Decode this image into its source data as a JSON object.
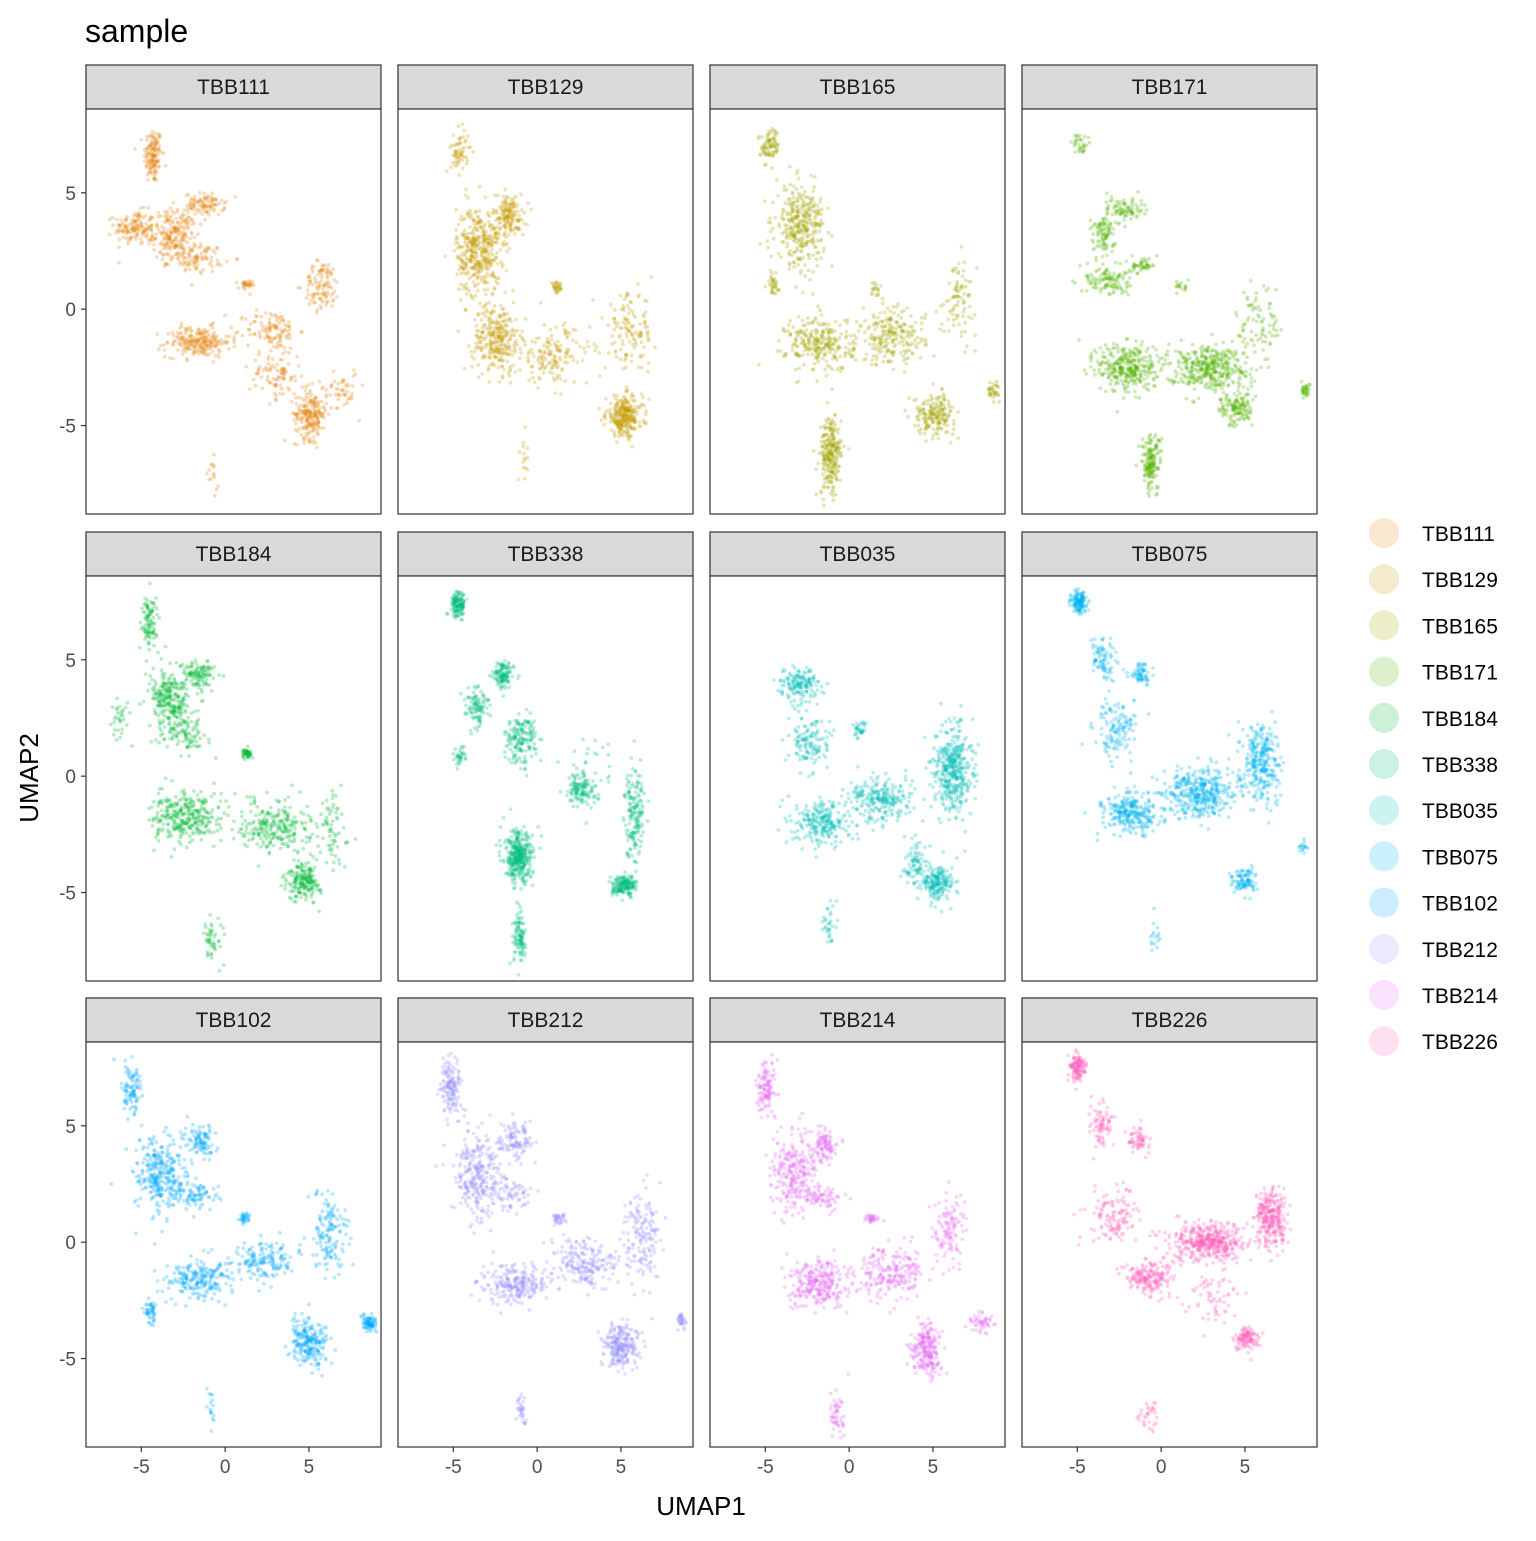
{
  "chart_data": {
    "type": "scatter",
    "title": "sample",
    "xlabel": "UMAP1",
    "ylabel": "UMAP2",
    "xlim": [
      -8.3,
      9.3
    ],
    "ylim": [
      -8.8,
      8.6
    ],
    "xticks": [
      -5,
      0,
      5
    ],
    "xtick_labels": [
      "-5",
      "0",
      "5"
    ],
    "yticks": [
      -5,
      0,
      5
    ],
    "ytick_labels": [
      "-5",
      "0",
      "5"
    ],
    "facet_layout": "3 rows x 4 columns",
    "legend_position": "right",
    "marker_opacity": "low (semi-transparent points)",
    "series": [
      {
        "name": "TBB111",
        "color": "#E68613",
        "clusters": [
          {
            "x": -4.3,
            "y": 6.6,
            "sx": 0.45,
            "sy": 1.0,
            "w": 0.09
          },
          {
            "x": -5.4,
            "y": 3.5,
            "sx": 1.0,
            "sy": 0.6,
            "w": 0.09
          },
          {
            "x": -3.0,
            "y": 3.2,
            "sx": 1.1,
            "sy": 0.9,
            "w": 0.14
          },
          {
            "x": -1.2,
            "y": 4.5,
            "sx": 1.0,
            "sy": 0.4,
            "w": 0.06
          },
          {
            "x": -1.6,
            "y": 2.2,
            "sx": 1.3,
            "sy": 0.5,
            "w": 0.06
          },
          {
            "x": 1.2,
            "y": 1.0,
            "sx": 0.35,
            "sy": 0.2,
            "w": 0.02
          },
          {
            "x": -1.6,
            "y": -1.4,
            "sx": 1.6,
            "sy": 0.55,
            "w": 0.15
          },
          {
            "x": 2.8,
            "y": -0.9,
            "sx": 1.3,
            "sy": 0.7,
            "w": 0.07
          },
          {
            "x": 5.8,
            "y": 1.0,
            "sx": 0.9,
            "sy": 0.9,
            "w": 0.07
          },
          {
            "x": 5.1,
            "y": -4.5,
            "sx": 0.8,
            "sy": 0.9,
            "w": 0.14
          },
          {
            "x": 3.0,
            "y": -2.8,
            "sx": 1.3,
            "sy": 0.9,
            "w": 0.06
          },
          {
            "x": 7.0,
            "y": -3.4,
            "sx": 0.8,
            "sy": 0.8,
            "w": 0.03
          },
          {
            "x": -0.8,
            "y": -7.2,
            "sx": 0.35,
            "sy": 0.6,
            "w": 0.01
          }
        ]
      },
      {
        "name": "TBB129",
        "color": "#C49A00",
        "clusters": [
          {
            "x": -4.6,
            "y": 6.8,
            "sx": 0.45,
            "sy": 0.8,
            "w": 0.04
          },
          {
            "x": -3.5,
            "y": 2.5,
            "sx": 1.1,
            "sy": 1.6,
            "w": 0.26
          },
          {
            "x": -1.7,
            "y": 4.0,
            "sx": 0.8,
            "sy": 0.8,
            "w": 0.1
          },
          {
            "x": -2.4,
            "y": -1.3,
            "sx": 1.2,
            "sy": 1.2,
            "w": 0.18
          },
          {
            "x": 1.0,
            "y": -2.0,
            "sx": 1.8,
            "sy": 1.1,
            "w": 0.1
          },
          {
            "x": 5.2,
            "y": -4.6,
            "sx": 0.9,
            "sy": 0.7,
            "w": 0.18
          },
          {
            "x": 5.5,
            "y": -1.0,
            "sx": 1.2,
            "sy": 1.4,
            "w": 0.08
          },
          {
            "x": 1.2,
            "y": 0.9,
            "sx": 0.3,
            "sy": 0.2,
            "w": 0.02
          },
          {
            "x": -0.8,
            "y": -6.5,
            "sx": 0.4,
            "sy": 0.8,
            "w": 0.01
          }
        ]
      },
      {
        "name": "TBB165",
        "color": "#A3A500",
        "clusters": [
          {
            "x": -4.7,
            "y": 7.0,
            "sx": 0.45,
            "sy": 0.6,
            "w": 0.05
          },
          {
            "x": -2.9,
            "y": 3.6,
            "sx": 1.2,
            "sy": 1.4,
            "w": 0.2
          },
          {
            "x": -4.6,
            "y": 1.1,
            "sx": 0.35,
            "sy": 0.4,
            "w": 0.02
          },
          {
            "x": -1.7,
            "y": -1.5,
            "sx": 1.7,
            "sy": 1.0,
            "w": 0.16
          },
          {
            "x": 2.6,
            "y": -1.2,
            "sx": 1.6,
            "sy": 1.0,
            "w": 0.13
          },
          {
            "x": -1.1,
            "y": -6.3,
            "sx": 0.55,
            "sy": 1.4,
            "w": 0.15
          },
          {
            "x": 5.1,
            "y": -4.5,
            "sx": 1.0,
            "sy": 0.7,
            "w": 0.11
          },
          {
            "x": 6.6,
            "y": 0.5,
            "sx": 0.8,
            "sy": 1.4,
            "w": 0.05
          },
          {
            "x": 8.6,
            "y": -3.5,
            "sx": 0.3,
            "sy": 0.3,
            "w": 0.02
          },
          {
            "x": 1.6,
            "y": 0.8,
            "sx": 0.4,
            "sy": 0.3,
            "w": 0.01
          }
        ]
      },
      {
        "name": "TBB171",
        "color": "#53B400",
        "clusters": [
          {
            "x": -4.8,
            "y": 7.1,
            "sx": 0.35,
            "sy": 0.4,
            "w": 0.02
          },
          {
            "x": -3.5,
            "y": 3.2,
            "sx": 0.6,
            "sy": 0.9,
            "w": 0.06
          },
          {
            "x": -2.1,
            "y": 4.3,
            "sx": 0.9,
            "sy": 0.45,
            "w": 0.05
          },
          {
            "x": -3.2,
            "y": 1.2,
            "sx": 1.1,
            "sy": 0.55,
            "w": 0.07
          },
          {
            "x": -1.1,
            "y": 1.9,
            "sx": 0.7,
            "sy": 0.3,
            "w": 0.03
          },
          {
            "x": -2.0,
            "y": -2.5,
            "sx": 1.5,
            "sy": 0.9,
            "w": 0.2
          },
          {
            "x": 2.8,
            "y": -2.5,
            "sx": 2.0,
            "sy": 0.8,
            "w": 0.24
          },
          {
            "x": -0.6,
            "y": -6.6,
            "sx": 0.5,
            "sy": 1.0,
            "w": 0.1
          },
          {
            "x": 4.5,
            "y": -4.3,
            "sx": 0.8,
            "sy": 0.6,
            "w": 0.08
          },
          {
            "x": 8.6,
            "y": -3.5,
            "sx": 0.25,
            "sy": 0.25,
            "w": 0.02
          },
          {
            "x": 6.0,
            "y": -0.5,
            "sx": 1.2,
            "sy": 1.5,
            "w": 0.05
          },
          {
            "x": 1.2,
            "y": 1.0,
            "sx": 0.3,
            "sy": 0.2,
            "w": 0.01
          }
        ]
      },
      {
        "name": "TBB184",
        "color": "#00B936",
        "clusters": [
          {
            "x": -4.5,
            "y": 6.6,
            "sx": 0.45,
            "sy": 1.0,
            "w": 0.06
          },
          {
            "x": -3.3,
            "y": 3.3,
            "sx": 1.0,
            "sy": 1.0,
            "w": 0.16
          },
          {
            "x": -1.6,
            "y": 4.4,
            "sx": 0.8,
            "sy": 0.5,
            "w": 0.07
          },
          {
            "x": -2.5,
            "y": 1.8,
            "sx": 1.2,
            "sy": 0.6,
            "w": 0.06
          },
          {
            "x": -2.3,
            "y": -1.8,
            "sx": 1.7,
            "sy": 0.9,
            "w": 0.2
          },
          {
            "x": 3.0,
            "y": -2.1,
            "sx": 1.8,
            "sy": 0.9,
            "w": 0.16
          },
          {
            "x": 4.7,
            "y": -4.5,
            "sx": 0.8,
            "sy": 0.7,
            "w": 0.12
          },
          {
            "x": 1.3,
            "y": 1.0,
            "sx": 0.35,
            "sy": 0.2,
            "w": 0.03
          },
          {
            "x": -0.7,
            "y": -7.0,
            "sx": 0.5,
            "sy": 0.8,
            "w": 0.03
          },
          {
            "x": -6.3,
            "y": 2.5,
            "sx": 0.5,
            "sy": 0.8,
            "w": 0.02
          },
          {
            "x": 6.5,
            "y": -2.5,
            "sx": 0.8,
            "sy": 1.5,
            "w": 0.04
          }
        ]
      },
      {
        "name": "TBB338",
        "color": "#00BF7D",
        "clusters": [
          {
            "x": -4.7,
            "y": 7.4,
            "sx": 0.35,
            "sy": 0.45,
            "w": 0.08
          },
          {
            "x": -2.0,
            "y": 4.3,
            "sx": 0.5,
            "sy": 0.5,
            "w": 0.07
          },
          {
            "x": -3.6,
            "y": 3.0,
            "sx": 0.6,
            "sy": 0.8,
            "w": 0.06
          },
          {
            "x": -1.0,
            "y": 1.6,
            "sx": 0.8,
            "sy": 0.9,
            "w": 0.1
          },
          {
            "x": -1.1,
            "y": -3.5,
            "sx": 0.7,
            "sy": 0.9,
            "w": 0.22
          },
          {
            "x": -1.0,
            "y": -7.0,
            "sx": 0.35,
            "sy": 0.9,
            "w": 0.06
          },
          {
            "x": 5.2,
            "y": -4.7,
            "sx": 0.6,
            "sy": 0.35,
            "w": 0.1
          },
          {
            "x": 5.8,
            "y": -1.5,
            "sx": 0.5,
            "sy": 1.6,
            "w": 0.1
          },
          {
            "x": 2.6,
            "y": -0.6,
            "sx": 0.6,
            "sy": 0.6,
            "w": 0.06
          },
          {
            "x": -4.6,
            "y": 0.8,
            "sx": 0.3,
            "sy": 0.4,
            "w": 0.02
          },
          {
            "x": 3.2,
            "y": 0.0,
            "sx": 1.5,
            "sy": 1.2,
            "w": 0.03
          }
        ]
      },
      {
        "name": "TBB035",
        "color": "#00C0B8",
        "clusters": [
          {
            "x": -3.0,
            "y": 3.9,
            "sx": 1.0,
            "sy": 0.6,
            "w": 0.1
          },
          {
            "x": -2.3,
            "y": 1.5,
            "sx": 1.0,
            "sy": 1.0,
            "w": 0.08
          },
          {
            "x": -1.6,
            "y": -2.0,
            "sx": 1.4,
            "sy": 0.8,
            "w": 0.15
          },
          {
            "x": 2.0,
            "y": -1.0,
            "sx": 1.6,
            "sy": 0.8,
            "w": 0.15
          },
          {
            "x": 6.2,
            "y": 0.3,
            "sx": 0.9,
            "sy": 1.6,
            "w": 0.26
          },
          {
            "x": 5.3,
            "y": -4.6,
            "sx": 0.8,
            "sy": 0.6,
            "w": 0.12
          },
          {
            "x": 4.0,
            "y": -3.8,
            "sx": 0.6,
            "sy": 0.7,
            "w": 0.05
          },
          {
            "x": -1.2,
            "y": -6.5,
            "sx": 0.3,
            "sy": 0.8,
            "w": 0.02
          },
          {
            "x": 0.6,
            "y": 2.0,
            "sx": 0.3,
            "sy": 0.3,
            "w": 0.02
          }
        ]
      },
      {
        "name": "TBB075",
        "color": "#00B4EF",
        "clusters": [
          {
            "x": -4.9,
            "y": 7.5,
            "sx": 0.4,
            "sy": 0.45,
            "w": 0.08
          },
          {
            "x": -3.5,
            "y": 5.0,
            "sx": 0.6,
            "sy": 0.7,
            "w": 0.05
          },
          {
            "x": -1.2,
            "y": 4.4,
            "sx": 0.6,
            "sy": 0.4,
            "w": 0.04
          },
          {
            "x": -2.6,
            "y": 2.0,
            "sx": 1.1,
            "sy": 1.0,
            "w": 0.08
          },
          {
            "x": -1.8,
            "y": -1.6,
            "sx": 1.3,
            "sy": 0.7,
            "w": 0.17
          },
          {
            "x": 2.3,
            "y": -0.7,
            "sx": 1.8,
            "sy": 0.9,
            "w": 0.25
          },
          {
            "x": 6.0,
            "y": 0.6,
            "sx": 0.9,
            "sy": 1.4,
            "w": 0.18
          },
          {
            "x": 5.0,
            "y": -4.5,
            "sx": 0.6,
            "sy": 0.5,
            "w": 0.06
          },
          {
            "x": -0.4,
            "y": -7.0,
            "sx": 0.4,
            "sy": 0.8,
            "w": 0.01
          },
          {
            "x": 8.4,
            "y": -3.1,
            "sx": 0.3,
            "sy": 0.2,
            "w": 0.01
          }
        ]
      },
      {
        "name": "TBB102",
        "color": "#00A9FF",
        "clusters": [
          {
            "x": -5.6,
            "y": 6.6,
            "sx": 0.5,
            "sy": 1.0,
            "w": 0.06
          },
          {
            "x": -3.9,
            "y": 2.8,
            "sx": 1.3,
            "sy": 1.4,
            "w": 0.2
          },
          {
            "x": -1.5,
            "y": 4.3,
            "sx": 0.8,
            "sy": 0.6,
            "w": 0.06
          },
          {
            "x": -1.7,
            "y": 2.0,
            "sx": 1.0,
            "sy": 0.5,
            "w": 0.05
          },
          {
            "x": -4.4,
            "y": -3.1,
            "sx": 0.35,
            "sy": 0.4,
            "w": 0.03
          },
          {
            "x": -1.5,
            "y": -1.6,
            "sx": 1.7,
            "sy": 0.7,
            "w": 0.14
          },
          {
            "x": 2.4,
            "y": -0.8,
            "sx": 1.5,
            "sy": 0.8,
            "w": 0.1
          },
          {
            "x": 6.2,
            "y": 0.4,
            "sx": 1.0,
            "sy": 1.5,
            "w": 0.09
          },
          {
            "x": 5.0,
            "y": -4.3,
            "sx": 1.0,
            "sy": 0.8,
            "w": 0.14
          },
          {
            "x": 8.6,
            "y": -3.5,
            "sx": 0.35,
            "sy": 0.3,
            "w": 0.05
          },
          {
            "x": 1.2,
            "y": 1.0,
            "sx": 0.3,
            "sy": 0.2,
            "w": 0.02
          },
          {
            "x": -0.8,
            "y": -7.0,
            "sx": 0.3,
            "sy": 0.9,
            "w": 0.01
          }
        ]
      },
      {
        "name": "TBB212",
        "color": "#9590FF",
        "clusters": [
          {
            "x": -5.1,
            "y": 6.6,
            "sx": 0.5,
            "sy": 1.1,
            "w": 0.09
          },
          {
            "x": -3.5,
            "y": 2.9,
            "sx": 1.2,
            "sy": 1.5,
            "w": 0.18
          },
          {
            "x": -1.3,
            "y": 4.4,
            "sx": 0.8,
            "sy": 0.6,
            "w": 0.07
          },
          {
            "x": -1.6,
            "y": 2.0,
            "sx": 1.0,
            "sy": 0.5,
            "w": 0.04
          },
          {
            "x": -1.3,
            "y": -1.8,
            "sx": 1.7,
            "sy": 0.7,
            "w": 0.15
          },
          {
            "x": 2.8,
            "y": -0.9,
            "sx": 1.6,
            "sy": 0.9,
            "w": 0.13
          },
          {
            "x": 6.3,
            "y": 0.2,
            "sx": 0.9,
            "sy": 1.6,
            "w": 0.1
          },
          {
            "x": 5.0,
            "y": -4.4,
            "sx": 0.9,
            "sy": 0.8,
            "w": 0.15
          },
          {
            "x": 8.6,
            "y": -3.4,
            "sx": 0.3,
            "sy": 0.3,
            "w": 0.02
          },
          {
            "x": 1.3,
            "y": 1.0,
            "sx": 0.3,
            "sy": 0.2,
            "w": 0.02
          },
          {
            "x": -1.0,
            "y": -7.2,
            "sx": 0.3,
            "sy": 0.7,
            "w": 0.02
          }
        ]
      },
      {
        "name": "TBB214",
        "color": "#E76BF3",
        "clusters": [
          {
            "x": -4.9,
            "y": 6.6,
            "sx": 0.5,
            "sy": 1.0,
            "w": 0.07
          },
          {
            "x": -3.2,
            "y": 3.0,
            "sx": 1.2,
            "sy": 1.4,
            "w": 0.16
          },
          {
            "x": -1.4,
            "y": 4.2,
            "sx": 0.8,
            "sy": 0.6,
            "w": 0.06
          },
          {
            "x": -1.6,
            "y": 1.9,
            "sx": 1.0,
            "sy": 0.4,
            "w": 0.04
          },
          {
            "x": -1.8,
            "y": -1.8,
            "sx": 1.5,
            "sy": 0.8,
            "w": 0.17
          },
          {
            "x": 2.4,
            "y": -1.3,
            "sx": 1.7,
            "sy": 1.0,
            "w": 0.13
          },
          {
            "x": 6.0,
            "y": 0.5,
            "sx": 0.9,
            "sy": 1.3,
            "w": 0.07
          },
          {
            "x": 4.6,
            "y": -4.6,
            "sx": 0.7,
            "sy": 0.9,
            "w": 0.14
          },
          {
            "x": 7.9,
            "y": -3.5,
            "sx": 0.6,
            "sy": 0.4,
            "w": 0.03
          },
          {
            "x": -0.8,
            "y": -7.4,
            "sx": 0.4,
            "sy": 0.9,
            "w": 0.03
          },
          {
            "x": 1.3,
            "y": 1.0,
            "sx": 0.3,
            "sy": 0.2,
            "w": 0.02
          }
        ]
      },
      {
        "name": "TBB226",
        "color": "#FF62BC",
        "clusters": [
          {
            "x": -5.0,
            "y": 7.5,
            "sx": 0.4,
            "sy": 0.5,
            "w": 0.08
          },
          {
            "x": -3.6,
            "y": 5.0,
            "sx": 0.6,
            "sy": 0.8,
            "w": 0.05
          },
          {
            "x": -1.3,
            "y": 4.4,
            "sx": 0.6,
            "sy": 0.5,
            "w": 0.04
          },
          {
            "x": -2.8,
            "y": 1.2,
            "sx": 1.3,
            "sy": 1.0,
            "w": 0.08
          },
          {
            "x": -0.8,
            "y": -1.5,
            "sx": 1.1,
            "sy": 0.6,
            "w": 0.12
          },
          {
            "x": 2.8,
            "y": 0.0,
            "sx": 1.8,
            "sy": 0.7,
            "w": 0.28
          },
          {
            "x": 6.6,
            "y": 1.0,
            "sx": 0.8,
            "sy": 1.1,
            "w": 0.18
          },
          {
            "x": 5.1,
            "y": -4.2,
            "sx": 0.6,
            "sy": 0.4,
            "w": 0.07
          },
          {
            "x": 3.0,
            "y": -2.5,
            "sx": 1.4,
            "sy": 0.9,
            "w": 0.04
          },
          {
            "x": -0.8,
            "y": -7.4,
            "sx": 0.4,
            "sy": 0.6,
            "w": 0.02
          }
        ]
      }
    ]
  }
}
